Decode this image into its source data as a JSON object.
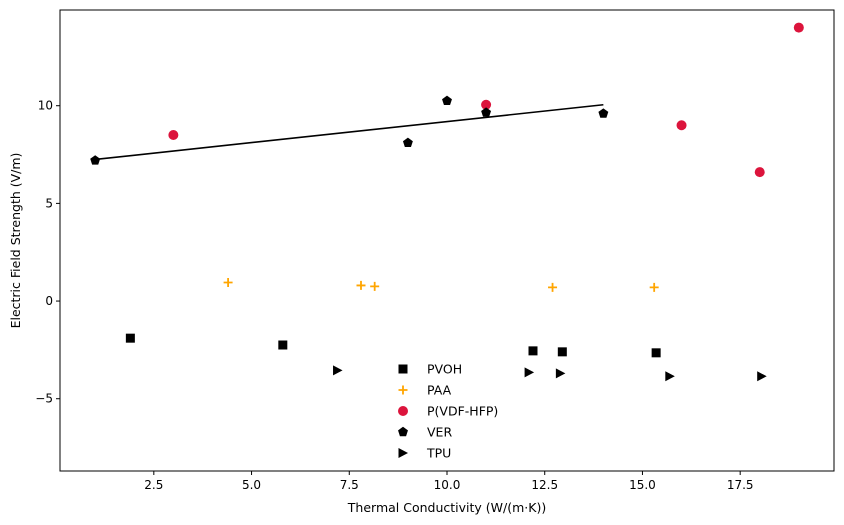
{
  "chart_data": {
    "type": "scatter",
    "title": "",
    "xlabel": "Thermal Conductivity (W/(m·K))",
    "ylabel": "Electric Field Strength (V/m)",
    "xlim": [
      0.1,
      19.9
    ],
    "ylim": [
      -8.7,
      14.9
    ],
    "xticks": [
      2.5,
      5.0,
      7.5,
      10.0,
      12.5,
      15.0,
      17.5
    ],
    "xtick_labels": [
      "2.5",
      "5.0",
      "7.5",
      "10.0",
      "12.5",
      "15.0",
      "17.5"
    ],
    "yticks": [
      -5,
      0,
      5,
      10
    ],
    "ytick_labels": [
      "−5",
      "0",
      "5",
      "10"
    ],
    "grid": false,
    "legend_position": "bottom-center",
    "series": [
      {
        "name": "PVOH",
        "marker": "square",
        "color": "#000000",
        "points": [
          [
            1.9,
            -1.9
          ],
          [
            5.8,
            -2.25
          ],
          [
            12.2,
            -2.55
          ],
          [
            12.95,
            -2.6
          ],
          [
            15.35,
            -2.65
          ]
        ]
      },
      {
        "name": "PAA",
        "marker": "plus",
        "color": "#FFA500",
        "points": [
          [
            4.4,
            0.95
          ],
          [
            7.8,
            0.8
          ],
          [
            8.15,
            0.75
          ],
          [
            12.7,
            0.7
          ],
          [
            15.3,
            0.7
          ]
        ]
      },
      {
        "name": "P(VDF-HFP)",
        "marker": "circle",
        "color": "#DC143C",
        "points": [
          [
            3.0,
            8.5
          ],
          [
            11.0,
            10.05
          ],
          [
            16.0,
            9.0
          ],
          [
            18.0,
            6.6
          ],
          [
            19.0,
            14.0
          ]
        ]
      },
      {
        "name": "VER",
        "marker": "pentagon",
        "color": "#000000",
        "points": [
          [
            1.0,
            7.2
          ],
          [
            9.0,
            8.1
          ],
          [
            10.0,
            10.25
          ],
          [
            11.0,
            9.65
          ],
          [
            14.0,
            9.6
          ]
        ]
      },
      {
        "name": "TPU",
        "marker": "triangle-right",
        "color": "#000000",
        "points": [
          [
            7.2,
            -3.55
          ],
          [
            12.1,
            -3.65
          ],
          [
            12.9,
            -3.7
          ],
          [
            15.7,
            -3.85
          ],
          [
            18.05,
            -3.85
          ]
        ]
      }
    ],
    "fit_line": {
      "color": "#000000",
      "points": [
        [
          1.0,
          7.25
        ],
        [
          14.0,
          10.05
        ]
      ]
    }
  }
}
